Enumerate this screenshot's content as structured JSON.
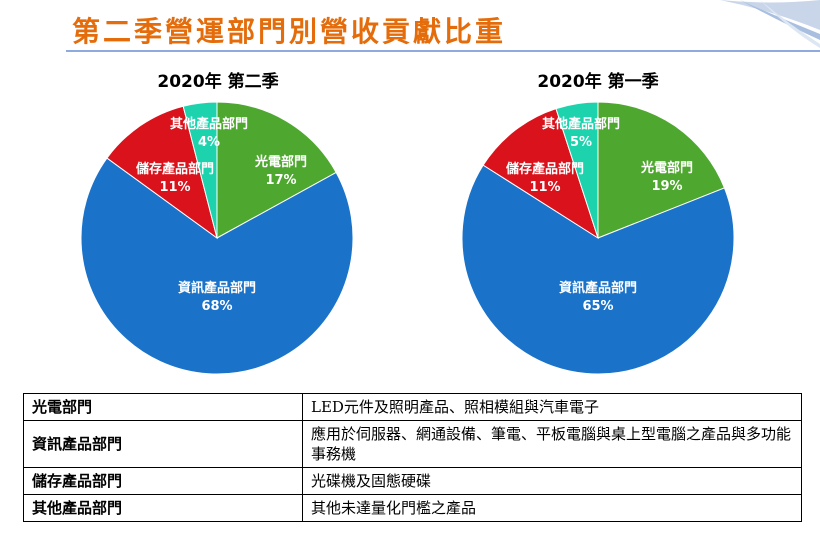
{
  "page": {
    "title": "第二季營運部門別營收貢獻比重"
  },
  "colors": {
    "title": "#e46c0a",
    "green": "#4ea72e",
    "blue": "#1a73c9",
    "red": "#d9121b",
    "teal": "#1dd3ae"
  },
  "chart_data": [
    {
      "type": "pie",
      "title": "2020年 第二季",
      "slices": [
        {
          "label": "光電部門",
          "value": 17,
          "display": "17%",
          "color": "#4ea72e"
        },
        {
          "label": "資訊產品部門",
          "value": 68,
          "display": "68%",
          "color": "#1a73c9"
        },
        {
          "label": "儲存產品部門",
          "value": 11,
          "display": "11%",
          "color": "#d9121b"
        },
        {
          "label": "其他產品部門",
          "value": 4,
          "display": "4%",
          "color": "#1dd3ae"
        }
      ]
    },
    {
      "type": "pie",
      "title": "2020年 第一季",
      "slices": [
        {
          "label": "光電部門",
          "value": 19,
          "display": "19%",
          "color": "#4ea72e"
        },
        {
          "label": "資訊產品部門",
          "value": 65,
          "display": "65%",
          "color": "#1a73c9"
        },
        {
          "label": "儲存產品部門",
          "value": 11,
          "display": "11%",
          "color": "#d9121b"
        },
        {
          "label": "其他產品部門",
          "value": 5,
          "display": "5%",
          "color": "#1dd3ae"
        }
      ]
    }
  ],
  "legend_table": [
    {
      "name": "光電部門",
      "description": "LED元件及照明產品、照相模組與汽車電子"
    },
    {
      "name": "資訊產品部門",
      "description": "應用於伺服器、網通設備、筆電、平板電腦與桌上型電腦之產品與多功能事務機"
    },
    {
      "name": "儲存產品部門",
      "description": "光碟機及固態硬碟"
    },
    {
      "name": "其他產品部門",
      "description": "其他未達量化門檻之產品"
    }
  ]
}
